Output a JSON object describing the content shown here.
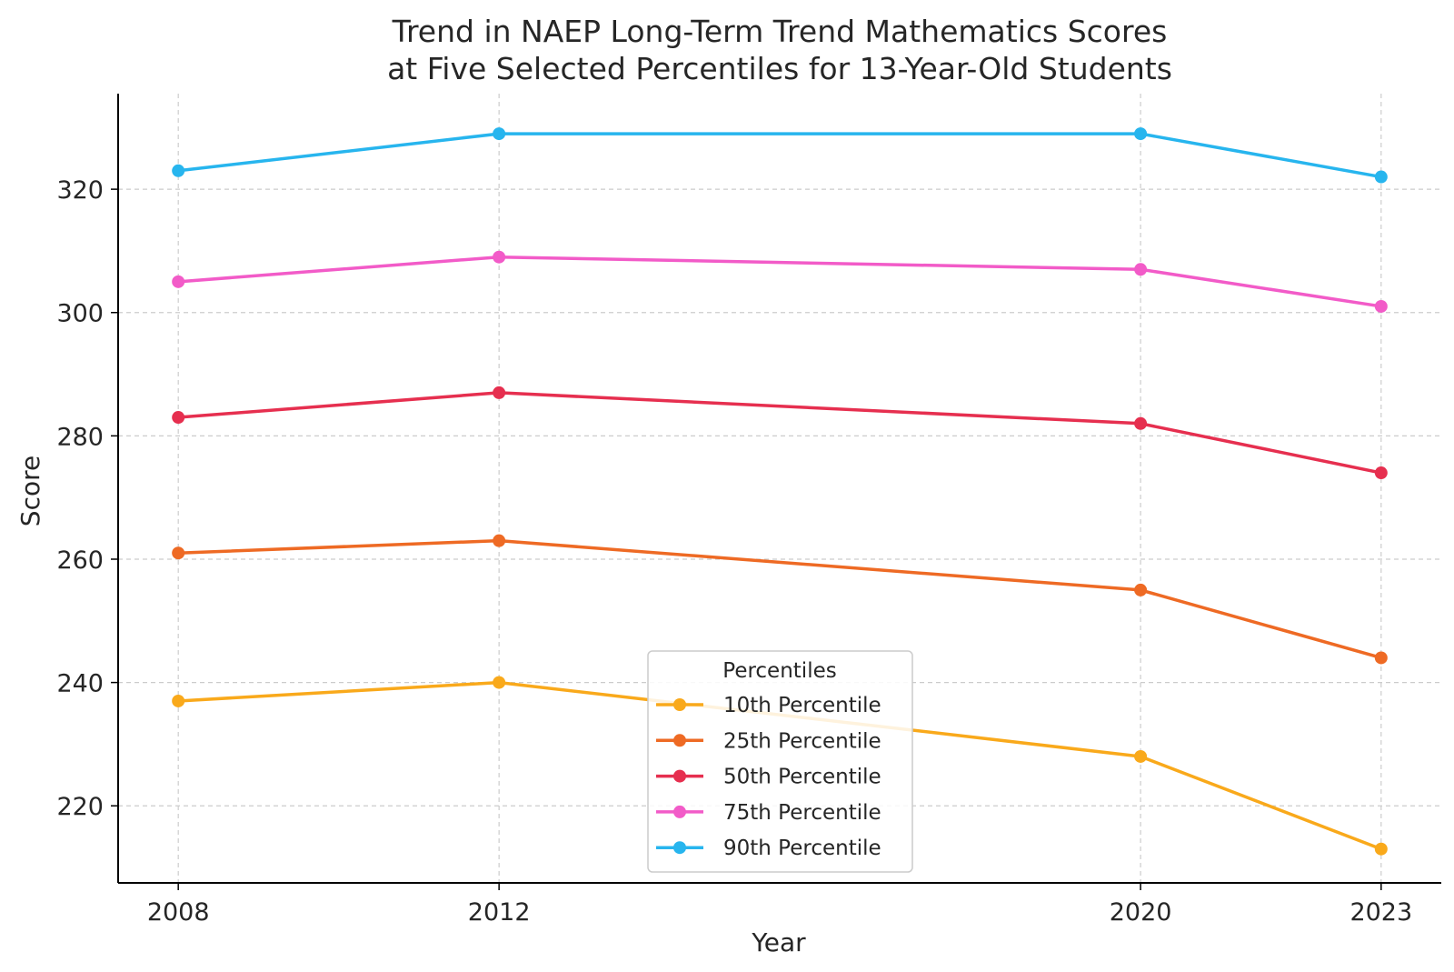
{
  "chart_data": {
    "type": "line",
    "title": "Trend in NAEP Long-Term Trend Mathematics Scores",
    "subtitle": "at Five Selected Percentiles for 13-Year-Old Students",
    "xlabel": "Year",
    "ylabel": "Score",
    "x": [
      2008,
      2012,
      2020,
      2023
    ],
    "x_tick_labels": [
      "2008",
      "2012",
      "2020",
      "2023"
    ],
    "xlim": [
      2007.25,
      2023.75
    ],
    "ylim": [
      207.5,
      335.5
    ],
    "y_ticks": [
      220,
      240,
      260,
      280,
      300,
      320
    ],
    "y_tick_labels": [
      "220",
      "240",
      "260",
      "280",
      "300",
      "320"
    ],
    "grid": true,
    "legend": {
      "title": "Percentiles",
      "placement": "lower-center"
    },
    "series": [
      {
        "name": "10th Percentile",
        "color": "#F9A91B",
        "values": [
          237,
          240,
          228,
          213
        ]
      },
      {
        "name": "25th Percentile",
        "color": "#EE6A24",
        "values": [
          261,
          263,
          255,
          244
        ]
      },
      {
        "name": "50th Percentile",
        "color": "#E62F4F",
        "values": [
          283,
          287,
          282,
          274
        ]
      },
      {
        "name": "75th Percentile",
        "color": "#F25BC8",
        "values": [
          305,
          309,
          307,
          301
        ]
      },
      {
        "name": "90th Percentile",
        "color": "#27B5EE",
        "values": [
          323,
          329,
          329,
          322
        ]
      }
    ]
  }
}
